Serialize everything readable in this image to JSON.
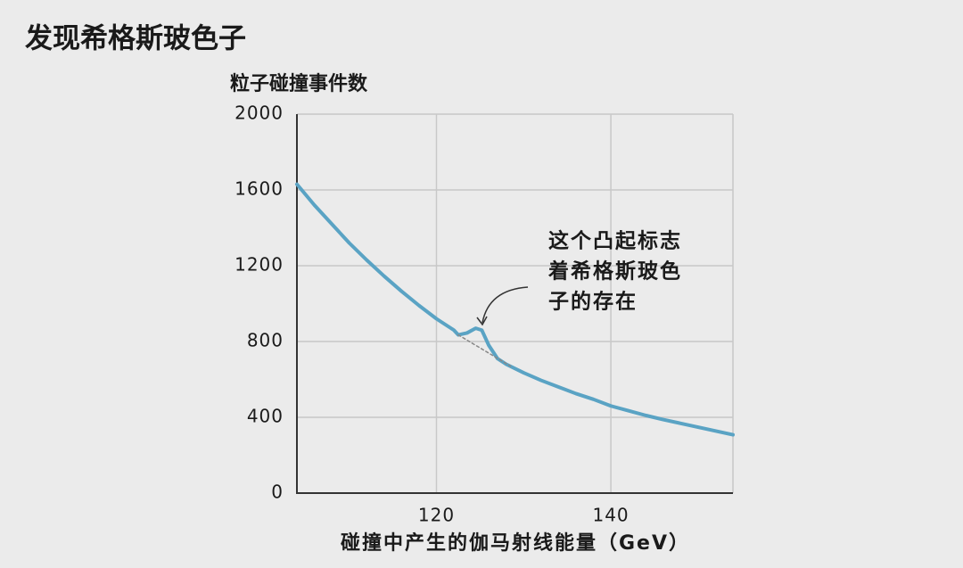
{
  "chart_data": {
    "type": "line",
    "title": "发现希格斯玻色子",
    "y_label": "粒子碰撞事件数",
    "x_label": "碰撞中产生的伽马射线能量（GeV）",
    "xlim": [
      104,
      154
    ],
    "ylim": [
      0,
      2000
    ],
    "xticks": [
      120,
      140
    ],
    "yticks": [
      0,
      400,
      800,
      1200,
      1600,
      2000
    ],
    "grid": true,
    "series": [
      {
        "color": "#5aa3c4",
        "x": [
          104,
          106,
          108,
          110,
          112,
          114,
          116,
          118,
          120,
          122,
          122.5,
          123.5,
          124.5,
          125.2,
          126,
          127,
          128,
          130,
          132,
          134,
          136,
          138,
          140,
          142,
          144,
          146,
          148,
          150,
          152,
          154
        ],
        "values": [
          1630,
          1520,
          1420,
          1320,
          1230,
          1145,
          1065,
          990,
          920,
          860,
          835,
          845,
          870,
          860,
          780,
          710,
          680,
          635,
          595,
          560,
          525,
          495,
          460,
          435,
          410,
          388,
          368,
          348,
          328,
          308
        ]
      },
      {
        "color": "#888888",
        "dashed": true,
        "x": [
          122.5,
          128.5
        ],
        "values": [
          835,
          670
        ]
      }
    ],
    "annotation": [
      "这个凸起标志",
      "着希格斯玻色",
      "子的存在"
    ]
  }
}
